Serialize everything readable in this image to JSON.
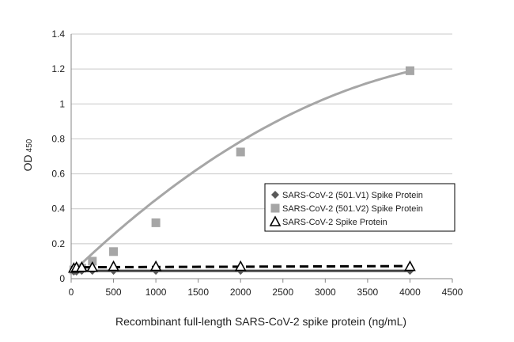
{
  "chart_data": {
    "type": "scatter",
    "title": "",
    "xlabel": "Recombinant full-length SARS-CoV-2 spike protein (ng/mL)",
    "ylabel": "OD",
    "ylabel_subscript": "450",
    "xlim": [
      0,
      4500
    ],
    "ylim": [
      0,
      1.4
    ],
    "x_ticks": [
      0,
      500,
      1000,
      1500,
      2000,
      2500,
      3000,
      3500,
      4000,
      4500
    ],
    "y_ticks": [
      0,
      0.2,
      0.4,
      0.6,
      0.8,
      1,
      1.2,
      1.4
    ],
    "grid": "horizontal",
    "legend_position": "right-middle",
    "series": [
      {
        "name": "SARS-CoV-2  (501.V1) Spike Protein",
        "marker": "diamond",
        "line": "solid",
        "color": "#595959",
        "x": [
          31.25,
          62.5,
          125,
          250,
          500,
          1000,
          2000,
          4000
        ],
        "y": [
          0.04,
          0.04,
          0.045,
          0.045,
          0.045,
          0.045,
          0.045,
          0.045
        ]
      },
      {
        "name": "SARS-CoV-2  (501.V2) Spike Protein",
        "marker": "square",
        "line": "solid-curve",
        "color": "#a6a6a6",
        "x": [
          31.25,
          62.5,
          125,
          250,
          500,
          1000,
          2000,
          4000
        ],
        "y": [
          0.05,
          0.055,
          0.06,
          0.1,
          0.155,
          0.32,
          0.725,
          1.19
        ]
      },
      {
        "name": "SARS-CoV-2  Spike Protein",
        "marker": "triangle-open",
        "line": "dashed",
        "color": "#000000",
        "x": [
          31.25,
          62.5,
          125,
          250,
          500,
          1000,
          2000,
          4000
        ],
        "y": [
          0.06,
          0.065,
          0.065,
          0.065,
          0.07,
          0.07,
          0.07,
          0.07
        ]
      }
    ]
  }
}
